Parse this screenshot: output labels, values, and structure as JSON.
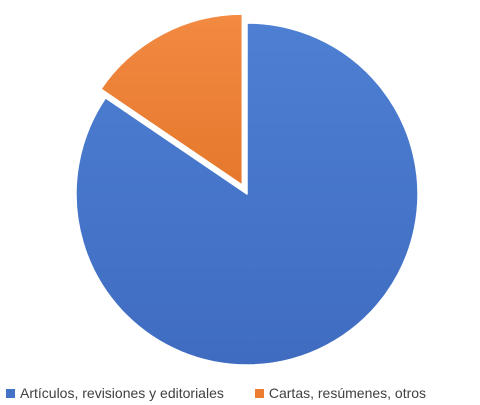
{
  "chart_data": {
    "type": "pie",
    "title": "",
    "categories": [
      "Artículos, revisiones y editoriales",
      "Cartas, resúmenes, otros"
    ],
    "values": [
      84.5,
      15.5
    ],
    "unit": "%",
    "start_angle_deg": 0,
    "direction": "clockwise",
    "exploded": [
      "Cartas, resúmenes, otros"
    ],
    "legend_position": "bottom",
    "colors": [
      "#4472c4",
      "#ed7d31"
    ]
  }
}
